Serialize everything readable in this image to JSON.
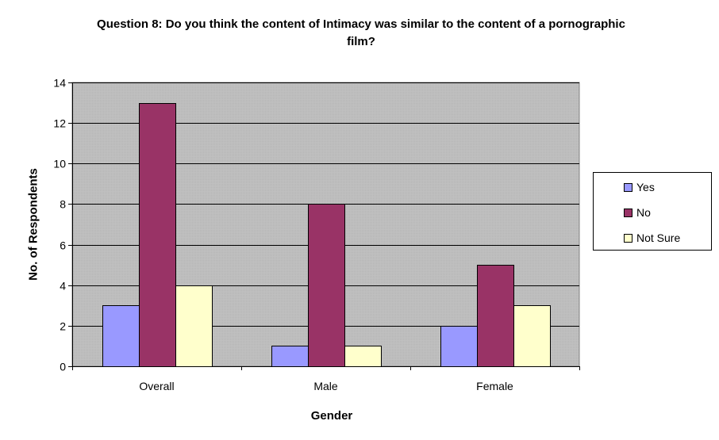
{
  "chart_data": {
    "type": "bar",
    "title_lines": [
      "Question 8: Do you think the content of Intimacy was similar to the content of a pornographic",
      "film?"
    ],
    "xlabel": "Gender",
    "ylabel": "No. of Respondents",
    "categories": [
      "Overall",
      "Male",
      "Female"
    ],
    "series": [
      {
        "name": "Yes",
        "values": [
          3,
          1,
          2
        ],
        "color": "#9999ff"
      },
      {
        "name": "No",
        "values": [
          13,
          8,
          5
        ],
        "color": "#993366"
      },
      {
        "name": "Not Sure",
        "values": [
          4,
          1,
          3
        ],
        "color": "#ffffcc"
      }
    ],
    "ylim": [
      0,
      14
    ],
    "yticks": [
      "0",
      "2",
      "4",
      "6",
      "8",
      "10",
      "12",
      "14"
    ],
    "grid": true,
    "legend_position": "right",
    "plot_background": "#c0c0c0"
  }
}
